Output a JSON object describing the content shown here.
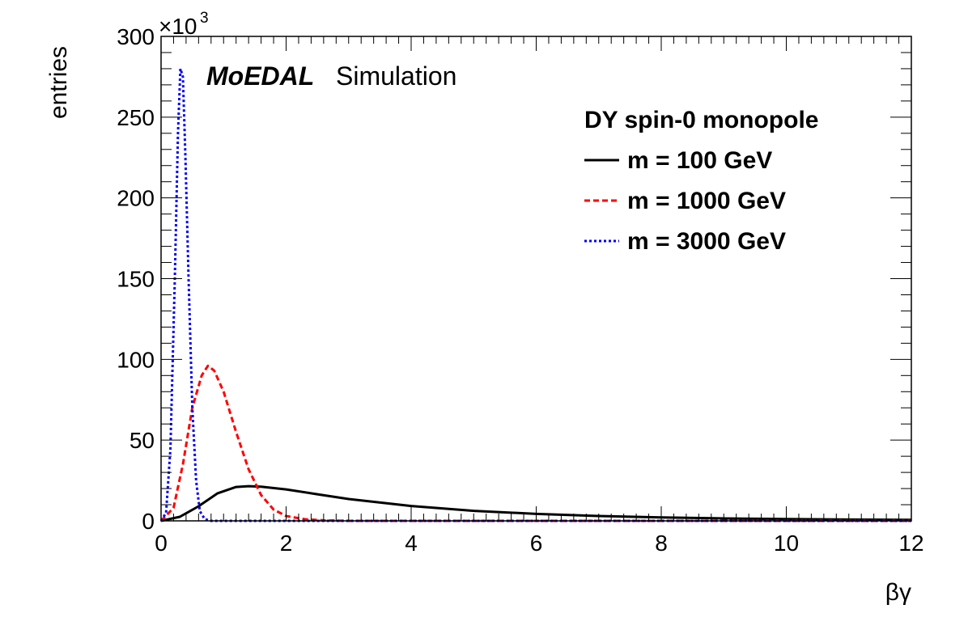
{
  "chart_data": {
    "type": "line",
    "title": "",
    "xlabel": "βγ",
    "ylabel": "entries",
    "xlim": [
      0,
      12
    ],
    "ylim": [
      0,
      300
    ],
    "y_scale_label": "×10",
    "y_scale_exponent": "3",
    "x_ticks": [
      0,
      2,
      4,
      6,
      8,
      10,
      12
    ],
    "x_tick_labels": [
      "0",
      "2",
      "4",
      "6",
      "8",
      "10",
      "12"
    ],
    "y_ticks": [
      0,
      50,
      100,
      150,
      200,
      250,
      300
    ],
    "y_tick_labels": [
      "0",
      "50",
      "100",
      "150",
      "200",
      "250",
      "300"
    ],
    "grid": false,
    "legend_header": "DY spin-0 monopole",
    "legend_position": "top-right",
    "brand_bold": "MoEDAL",
    "brand_plain": "Simulation",
    "series": [
      {
        "name": "m = 100 GeV",
        "color": "#000000",
        "style": "solid",
        "x": [
          0,
          0.3,
          0.6,
          0.9,
          1.2,
          1.4,
          1.6,
          2,
          2.5,
          3,
          4,
          5,
          6,
          7,
          8,
          9,
          10,
          11,
          12
        ],
        "values": [
          0,
          2.5,
          9,
          17,
          21,
          21.5,
          21.2,
          19.5,
          16.5,
          13.5,
          9.2,
          6.2,
          4.3,
          3.0,
          2.1,
          1.5,
          1.1,
          0.8,
          0.6
        ]
      },
      {
        "name": "m = 1000 GeV",
        "color": "#ff0000",
        "style": "dashed",
        "x": [
          0,
          0.2,
          0.35,
          0.5,
          0.65,
          0.75,
          0.85,
          1.0,
          1.2,
          1.4,
          1.6,
          1.8,
          2.0,
          2.3,
          2.6,
          3,
          12
        ],
        "values": [
          0,
          8,
          35,
          70,
          90,
          96,
          93,
          80,
          55,
          32,
          16,
          7,
          3,
          1,
          0.3,
          0,
          0
        ]
      },
      {
        "name": "m = 3000 GeV",
        "color": "#0000ff",
        "style": "dotted",
        "x": [
          0,
          0.08,
          0.15,
          0.22,
          0.27,
          0.31,
          0.35,
          0.39,
          0.44,
          0.5,
          0.56,
          0.62,
          0.7,
          0.8,
          12
        ],
        "values": [
          0,
          5,
          45,
          150,
          240,
          280,
          275,
          225,
          150,
          70,
          25,
          6,
          1,
          0,
          0
        ]
      }
    ]
  }
}
